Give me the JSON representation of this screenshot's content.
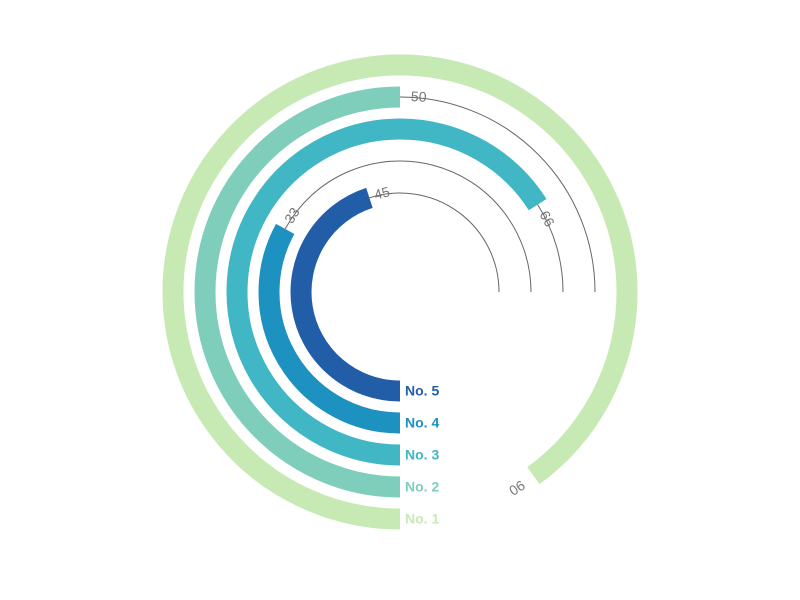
{
  "chart_data": {
    "type": "radial-bar",
    "max_value": 100,
    "series": [
      {
        "category": "No. 1",
        "value": 90,
        "value_label": "90",
        "color": "#c7e9b4"
      },
      {
        "category": "No. 2",
        "value": 50,
        "value_label": "50",
        "color": "#7fcdbb"
      },
      {
        "category": "No. 3",
        "value": 66,
        "value_label": "66",
        "color": "#41b6c4"
      },
      {
        "category": "No. 4",
        "value": 33,
        "value_label": "33",
        "color": "#1d91c0"
      },
      {
        "category": "No. 5",
        "value": 45,
        "value_label": "45",
        "color": "#225ea8"
      }
    ],
    "track_color": "#666666",
    "label_color": "#777777"
  }
}
